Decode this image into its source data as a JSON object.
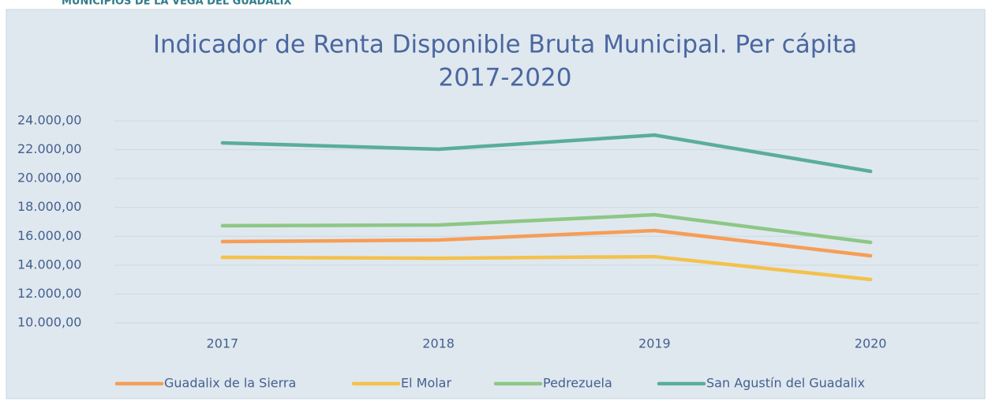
{
  "heading": "MUNICIPIOS DE LA VEGA DEL GUADALIX",
  "chart_data": {
    "type": "line",
    "title": [
      "Indicador de Renta Disponible Bruta Municipal. Per cápita",
      "2017-2020"
    ],
    "categories": [
      "2017",
      "2018",
      "2019",
      "2020"
    ],
    "series": [
      {
        "name": "Guadalix de la Sierra",
        "color": "#f79d56",
        "values": [
          15630,
          15740,
          16400,
          14650
        ]
      },
      {
        "name": "El Molar",
        "color": "#f4c14c",
        "values": [
          14540,
          14480,
          14590,
          13010
        ]
      },
      {
        "name": "Pedrezuela",
        "color": "#8dc785",
        "values": [
          16730,
          16780,
          17490,
          15580
        ]
      },
      {
        "name": "San Agustín del Guadalix",
        "color": "#5aad9b",
        "values": [
          22470,
          22030,
          23010,
          20500
        ]
      }
    ],
    "ylim": [
      10000,
      24000
    ],
    "yticks": [
      {
        "value": 10000,
        "label": "10.000,00"
      },
      {
        "value": 12000,
        "label": "12.000,00"
      },
      {
        "value": 14000,
        "label": "14.000,00"
      },
      {
        "value": 16000,
        "label": "16.000,00"
      },
      {
        "value": 18000,
        "label": "18.000,00"
      },
      {
        "value": 20000,
        "label": "20.000,00"
      },
      {
        "value": 22000,
        "label": "22.000,00"
      },
      {
        "value": 24000,
        "label": "24.000,00"
      }
    ],
    "grid": true,
    "legend": "bottom"
  }
}
